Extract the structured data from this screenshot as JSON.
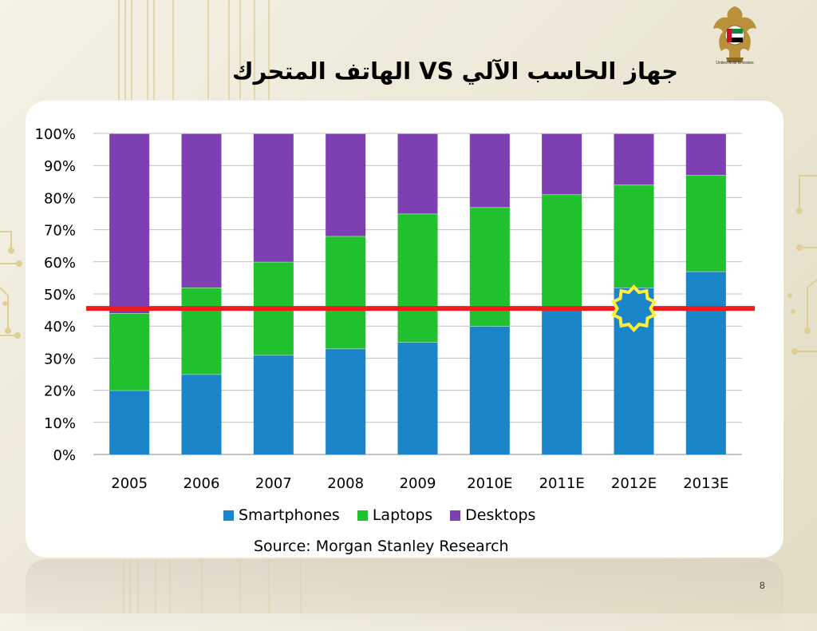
{
  "slide": {
    "title": "جهاز الحاسب الآلي  VS  الهاتف المتحرك",
    "emblem_caption": "United Arab Emirates",
    "page_number": "8",
    "source": "Source: Morgan Stanley Research",
    "emblem_icon": "uae-eagle-emblem-icon"
  },
  "chart_data": {
    "type": "bar",
    "stacked": true,
    "title": "",
    "xlabel": "",
    "ylabel": "",
    "ylim": [
      0,
      100
    ],
    "yticks": [
      "0%",
      "10%",
      "20%",
      "30%",
      "40%",
      "50%",
      "60%",
      "70%",
      "80%",
      "90%",
      "100%"
    ],
    "categories": [
      "2005",
      "2006",
      "2007",
      "2008",
      "2009",
      "2010E",
      "2011E",
      "2012E",
      "2013E"
    ],
    "series": [
      {
        "name": "Smartphones",
        "color": "#1a85c8",
        "values": [
          20,
          25,
          31,
          33,
          35,
          40,
          45,
          52,
          57
        ]
      },
      {
        "name": "Laptops",
        "color": "#1fc22e",
        "values": [
          24,
          27,
          29,
          35,
          40,
          37,
          36,
          32,
          30
        ]
      },
      {
        "name": "Desktops",
        "color": "#7d3fb2",
        "values": [
          56,
          48,
          40,
          32,
          25,
          23,
          19,
          16,
          13
        ]
      }
    ],
    "grid": true,
    "legend_position": "bottom",
    "annotations": {
      "reference_line": {
        "value": 45.5,
        "color": "#ee1c1c"
      },
      "highlight_marker": {
        "category": "2012E",
        "value": 45.5,
        "shape": "starburst",
        "color": "#ffef3a"
      }
    }
  }
}
